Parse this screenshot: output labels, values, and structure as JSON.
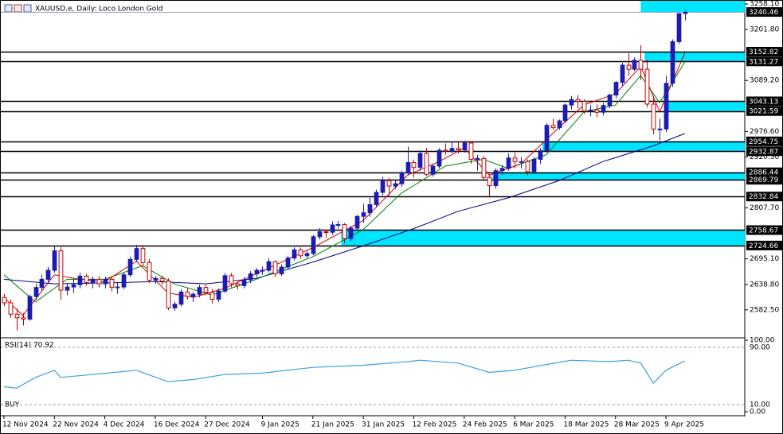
{
  "chart_data": [
    {
      "type": "candlestick",
      "title": "XAUUSD.e, Daily: Loco London Gold",
      "up_color": "#1c1cb0",
      "down_color": "#c00000",
      "xlim": [
        -0.5,
        117.5
      ],
      "ylim": [
        2522.5,
        3265.2
      ],
      "yticks": [
        {
          "value": 3258.1,
          "label": "3258.10"
        },
        {
          "value": 3201.8,
          "label": "3201.80"
        },
        {
          "value": 3089.2,
          "label": "3089.20"
        },
        {
          "value": 2976.6,
          "label": "2976.60"
        },
        {
          "value": 2920.3,
          "label": "2920.30"
        },
        {
          "value": 2807.7,
          "label": "2807.70"
        },
        {
          "value": 2695.1,
          "label": "2695.10"
        },
        {
          "value": 2638.8,
          "label": "2638.80"
        },
        {
          "value": 2582.5,
          "label": "2582.50"
        }
      ],
      "xticks": [
        {
          "value": 0,
          "label": "12 Nov 2024"
        },
        {
          "value": 8,
          "label": "22 Nov 2024"
        },
        {
          "value": 16,
          "label": "4 Dec 2024"
        },
        {
          "value": 24,
          "label": "16 Dec 2024"
        },
        {
          "value": 32,
          "label": "27 Dec 2024"
        },
        {
          "value": 41,
          "label": "9 Jan 2025"
        },
        {
          "value": 49,
          "label": "21 Jan 2025"
        },
        {
          "value": 57,
          "label": "31 Jan 2025"
        },
        {
          "value": 65,
          "label": "12 Feb 2025"
        },
        {
          "value": 73,
          "label": "24 Feb 2025"
        },
        {
          "value": 81,
          "label": "6 Mar 2025"
        },
        {
          "value": 89,
          "label": "18 Mar 2025"
        },
        {
          "value": 97,
          "label": "28 Mar 2025"
        },
        {
          "value": 105,
          "label": "9 Apr 2025"
        }
      ],
      "ohlc": [
        [
          2610,
          2618,
          2590,
          2598
        ],
        [
          2598,
          2605,
          2565,
          2573
        ],
        [
          2573,
          2585,
          2537,
          2565
        ],
        [
          2565,
          2575,
          2548,
          2562
        ],
        [
          2562,
          2616,
          2558,
          2612
        ],
        [
          2612,
          2640,
          2605,
          2632
        ],
        [
          2632,
          2660,
          2625,
          2650
        ],
        [
          2650,
          2677,
          2642,
          2670
        ],
        [
          2670,
          2722,
          2665,
          2713
        ],
        [
          2713,
          2721,
          2605,
          2626
        ],
        [
          2626,
          2642,
          2615,
          2633
        ],
        [
          2633,
          2650,
          2620,
          2638
        ],
        [
          2638,
          2665,
          2630,
          2657
        ],
        [
          2657,
          2662,
          2636,
          2643
        ],
        [
          2643,
          2656,
          2630,
          2650
        ],
        [
          2650,
          2657,
          2632,
          2640
        ],
        [
          2640,
          2656,
          2630,
          2650
        ],
        [
          2650,
          2655,
          2623,
          2632
        ],
        [
          2632,
          2642,
          2618,
          2633
        ],
        [
          2633,
          2666,
          2628,
          2660
        ],
        [
          2660,
          2700,
          2655,
          2694
        ],
        [
          2694,
          2726,
          2688,
          2718
        ],
        [
          2718,
          2722,
          2680,
          2687
        ],
        [
          2687,
          2695,
          2642,
          2648
        ],
        [
          2648,
          2657,
          2640,
          2652
        ],
        [
          2652,
          2658,
          2638,
          2646
        ],
        [
          2646,
          2652,
          2582,
          2587
        ],
        [
          2587,
          2600,
          2580,
          2595
        ],
        [
          2595,
          2628,
          2590,
          2622
        ],
        [
          2622,
          2630,
          2605,
          2612
        ],
        [
          2612,
          2622,
          2600,
          2617
        ],
        [
          2617,
          2638,
          2610,
          2632
        ],
        [
          2632,
          2638,
          2615,
          2621
        ],
        [
          2621,
          2628,
          2596,
          2606
        ],
        [
          2606,
          2630,
          2600,
          2624
        ],
        [
          2624,
          2664,
          2620,
          2658
        ],
        [
          2658,
          2664,
          2632,
          2640
        ],
        [
          2640,
          2645,
          2628,
          2636
        ],
        [
          2636,
          2655,
          2630,
          2649
        ],
        [
          2649,
          2668,
          2642,
          2662
        ],
        [
          2662,
          2675,
          2655,
          2670
        ],
        [
          2670,
          2678,
          2660,
          2670
        ],
        [
          2670,
          2697,
          2665,
          2689
        ],
        [
          2689,
          2692,
          2655,
          2662
        ],
        [
          2662,
          2683,
          2657,
          2677
        ],
        [
          2677,
          2702,
          2672,
          2697
        ],
        [
          2697,
          2720,
          2692,
          2715
        ],
        [
          2715,
          2720,
          2695,
          2702
        ],
        [
          2702,
          2712,
          2696,
          2707
        ],
        [
          2707,
          2748,
          2703,
          2744
        ],
        [
          2744,
          2763,
          2738,
          2755
        ],
        [
          2755,
          2759,
          2742,
          2754
        ],
        [
          2754,
          2778,
          2748,
          2770
        ],
        [
          2770,
          2779,
          2762,
          2771
        ],
        [
          2771,
          2774,
          2730,
          2740
        ],
        [
          2740,
          2768,
          2735,
          2763
        ],
        [
          2763,
          2792,
          2756,
          2789
        ],
        [
          2789,
          2817,
          2775,
          2797
        ],
        [
          2797,
          2830,
          2788,
          2815
        ],
        [
          2815,
          2848,
          2810,
          2842
        ],
        [
          2842,
          2877,
          2835,
          2868
        ],
        [
          2868,
          2874,
          2835,
          2856
        ],
        [
          2856,
          2870,
          2850,
          2861
        ],
        [
          2861,
          2890,
          2855,
          2885
        ],
        [
          2885,
          2943,
          2880,
          2908
        ],
        [
          2908,
          2915,
          2875,
          2897
        ],
        [
          2897,
          2935,
          2890,
          2928
        ],
        [
          2928,
          2940,
          2878,
          2882
        ],
        [
          2882,
          2905,
          2877,
          2900
        ],
        [
          2900,
          2940,
          2895,
          2935
        ],
        [
          2935,
          2950,
          2925,
          2933
        ],
        [
          2933,
          2955,
          2928,
          2939
        ],
        [
          2939,
          2955,
          2928,
          2936
        ],
        [
          2936,
          2956,
          2930,
          2951
        ],
        [
          2951,
          2955,
          2905,
          2915
        ],
        [
          2915,
          2925,
          2890,
          2917
        ],
        [
          2917,
          2922,
          2870,
          2875
        ],
        [
          2875,
          2882,
          2833,
          2857
        ],
        [
          2857,
          2895,
          2850,
          2890
        ],
        [
          2890,
          2902,
          2880,
          2895
        ],
        [
          2895,
          2928,
          2890,
          2918
        ],
        [
          2918,
          2930,
          2895,
          2910
        ],
        [
          2910,
          2920,
          2895,
          2910
        ],
        [
          2910,
          2915,
          2880,
          2888
        ],
        [
          2888,
          2920,
          2882,
          2915
        ],
        [
          2915,
          2940,
          2905,
          2934
        ],
        [
          2934,
          2995,
          2930,
          2990
        ],
        [
          2990,
          3005,
          2980,
          2985
        ],
        [
          2985,
          3003,
          2980,
          3000
        ],
        [
          3000,
          3038,
          2995,
          3035
        ],
        [
          3035,
          3055,
          3025,
          3047
        ],
        [
          3047,
          3057,
          3028,
          3043
        ],
        [
          3043,
          3048,
          3015,
          3022
        ],
        [
          3022,
          3035,
          3010,
          3024
        ],
        [
          3024,
          3036,
          3008,
          3019
        ],
        [
          3019,
          3040,
          3012,
          3034
        ],
        [
          3034,
          3060,
          3028,
          3057
        ],
        [
          3057,
          3088,
          3050,
          3085
        ],
        [
          3085,
          3128,
          3078,
          3123
        ],
        [
          3123,
          3149,
          3100,
          3114
        ],
        [
          3114,
          3140,
          3110,
          3134
        ],
        [
          3134,
          3167,
          3090,
          3114
        ],
        [
          3114,
          3135,
          3030,
          3037
        ],
        [
          3037,
          3055,
          2970,
          2982
        ],
        [
          2982,
          3005,
          2957,
          2982
        ],
        [
          2982,
          3100,
          2975,
          3083
        ],
        [
          3083,
          3180,
          3075,
          3175
        ],
        [
          3175,
          3237,
          3170,
          3237
        ],
        [
          3237,
          3245,
          3222,
          3240
        ]
      ],
      "moving_averages": [
        {
          "color": "#00008b",
          "x": [
            0,
            8,
            16,
            24,
            32,
            40,
            49,
            57,
            65,
            72,
            80,
            88,
            95,
            103,
            108
          ],
          "values": [
            2650,
            2640,
            2642,
            2645,
            2640,
            2652,
            2688,
            2724,
            2762,
            2800,
            2830,
            2868,
            2910,
            2945,
            2972
          ]
        },
        {
          "color": "#008000",
          "x": [
            0,
            5,
            10,
            16,
            22,
            27,
            33,
            40,
            49,
            57,
            63,
            70,
            76,
            80,
            86,
            92,
            97,
            101,
            104,
            108
          ],
          "values": [
            2660,
            2600,
            2650,
            2650,
            2680,
            2640,
            2615,
            2650,
            2700,
            2760,
            2840,
            2900,
            2915,
            2895,
            2925,
            3020,
            3035,
            3100,
            3040,
            3130
          ]
        },
        {
          "color": "#d00000",
          "x": [
            0,
            3,
            8,
            12,
            16,
            21,
            26,
            30,
            35,
            42,
            49,
            57,
            64,
            69,
            73,
            77,
            82,
            88,
            92,
            97,
            101,
            104,
            108
          ],
          "values": [
            2610,
            2570,
            2660,
            2650,
            2645,
            2690,
            2620,
            2610,
            2630,
            2675,
            2720,
            2780,
            2880,
            2910,
            2940,
            2880,
            2905,
            2985,
            3035,
            3060,
            3120,
            3020,
            3150
          ]
        }
      ],
      "levels": [
        3240.46,
        3152.82,
        3131.27,
        3043.13,
        3021.59,
        2954.75,
        2932.87,
        2886.44,
        2869.79,
        2832.84,
        2758.67,
        2724.66
      ],
      "zone_color": "#00e5ff",
      "zones": [
        {
          "range": [
            3240.46,
            3265.2
          ],
          "start": 101
        },
        {
          "range": [
            3131.27,
            3152.82
          ],
          "start": 101.6
        },
        {
          "range": [
            3021.59,
            3043.13
          ],
          "start": 105.2
        },
        {
          "range": [
            2932.87,
            2954.75
          ],
          "start": 85.4
        },
        {
          "range": [
            2869.79,
            2886.44
          ],
          "start": 77.5
        },
        {
          "range": [
            2724.66,
            2758.67
          ],
          "start": 53.5
        }
      ]
    },
    {
      "type": "line",
      "title": "RSI(14) 70.92",
      "annotation": "BUY",
      "color": "#3aa0e0",
      "xlim": [
        -0.5,
        117.5
      ],
      "ylim": [
        0,
        100
      ],
      "yticks": [
        {
          "value": 100,
          "label": "100.00"
        },
        {
          "value": 90,
          "label": "90.00"
        },
        {
          "value": 10,
          "label": "10.00"
        },
        {
          "value": 0,
          "label": "0.00"
        }
      ],
      "x": [
        0,
        2,
        5,
        8,
        9,
        14,
        21,
        26,
        30,
        35,
        41,
        49,
        57,
        64,
        66,
        72,
        77,
        81,
        86,
        90,
        96,
        99,
        101,
        103,
        105,
        108
      ],
      "values": [
        35,
        33,
        48,
        58,
        48,
        52,
        58,
        42,
        45,
        52,
        54,
        62,
        65,
        70,
        72,
        68,
        55,
        58,
        66,
        72,
        70,
        72,
        68,
        40,
        58,
        71
      ]
    }
  ]
}
